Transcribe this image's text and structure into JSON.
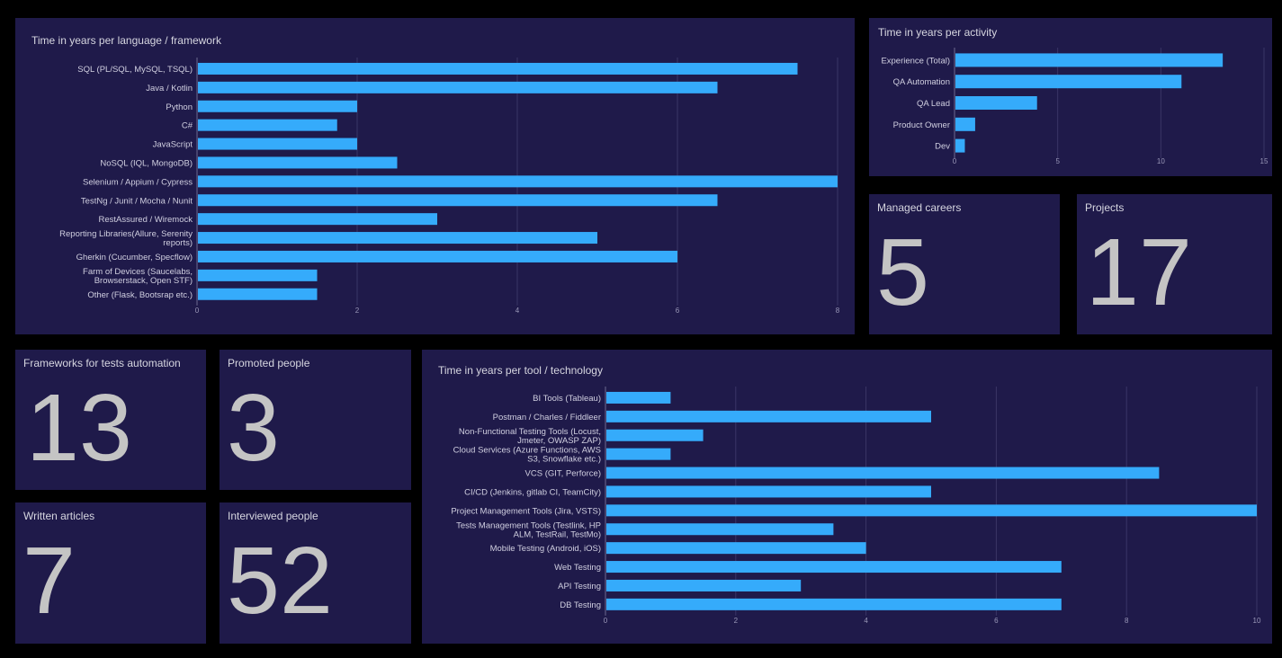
{
  "colors": {
    "background": "#000000",
    "panel": "#1f1a4a",
    "bar": "#35abfb",
    "gridline": "#3a3566",
    "text": "#d0cfe0",
    "big_number": "#c4c4c4"
  },
  "panels": {
    "languages": {
      "title": "Time in years per language / framework"
    },
    "activities": {
      "title": "Time in years per activity"
    },
    "tools": {
      "title": "Time in years per tool / technology"
    }
  },
  "stats": {
    "managed_careers": {
      "label": "Managed careers",
      "value": "5"
    },
    "projects": {
      "label": "Projects",
      "value": "17"
    },
    "frameworks": {
      "label": "Frameworks for tests automation",
      "value": "13"
    },
    "promoted": {
      "label": "Promoted people",
      "value": "3"
    },
    "articles": {
      "label": "Written articles",
      "value": "7"
    },
    "interviewed": {
      "label": "Interviewed people",
      "value": "52"
    }
  },
  "chart_data": [
    {
      "id": "languages",
      "type": "bar",
      "orientation": "horizontal",
      "title": "Time in years per language / framework",
      "categories": [
        [
          "SQL (PL/SQL, MySQL, TSQL)"
        ],
        [
          "Java / Kotlin"
        ],
        [
          "Python"
        ],
        [
          "C#"
        ],
        [
          "JavaScript"
        ],
        [
          "NoSQL (IQL, MongoDB)"
        ],
        [
          "Selenium / Appium / Cypress"
        ],
        [
          "TestNg / Junit / Mocha / Nunit"
        ],
        [
          "RestAssured / Wiremock"
        ],
        [
          "Reporting Libraries(Allure, Serenity",
          "reports)"
        ],
        [
          "Gherkin (Cucumber, Specflow)"
        ],
        [
          "Farm of Devices (Saucelabs,",
          "Browserstack, Open STF)"
        ],
        [
          "Other (Flask, Bootsrap etc.)"
        ]
      ],
      "values": [
        7.5,
        6.5,
        2,
        1.75,
        2,
        2.5,
        8,
        6.5,
        3,
        5,
        6,
        1.5,
        1.5
      ],
      "xlim": [
        0,
        8
      ],
      "xticks": [
        0,
        2,
        4,
        6,
        8
      ],
      "grid": true
    },
    {
      "id": "activities",
      "type": "bar",
      "orientation": "horizontal",
      "title": "Time in years per activity",
      "categories": [
        [
          "Experience (Total)"
        ],
        [
          "QA Automation"
        ],
        [
          "QA Lead"
        ],
        [
          "Product Owner"
        ],
        [
          "Dev"
        ]
      ],
      "values": [
        13,
        11,
        4,
        1,
        0.5
      ],
      "xlim": [
        0,
        15
      ],
      "xticks": [
        0,
        5,
        10,
        15
      ],
      "grid": true
    },
    {
      "id": "tools",
      "type": "bar",
      "orientation": "horizontal",
      "title": "Time in years per tool / technology",
      "categories": [
        [
          "BI Tools (Tableau)"
        ],
        [
          "Postman / Charles / Fiddleer"
        ],
        [
          "Non-Functional Testing Tools (Locust,",
          "Jmeter, OWASP ZAP)"
        ],
        [
          "Cloud Services (Azure Functions, AWS",
          "S3, Snowflake etc.)"
        ],
        [
          "VCS (GIT, Perforce)"
        ],
        [
          "CI/CD (Jenkins, gitlab CI, TeamCity)"
        ],
        [
          "Project Management Tools (Jira, VSTS)"
        ],
        [
          "Tests Management Tools (Testlink, HP",
          "ALM, TestRail, TestMo)"
        ],
        [
          "Mobile Testing (Android, iOS)"
        ],
        [
          "Web Testing"
        ],
        [
          "API Testing"
        ],
        [
          "DB Testing"
        ]
      ],
      "values": [
        1,
        5,
        1.5,
        1,
        8.5,
        5,
        10,
        3.5,
        4,
        7,
        3,
        7
      ],
      "xlim": [
        0,
        10
      ],
      "xticks": [
        0,
        2,
        4,
        6,
        8,
        10
      ],
      "grid": true
    }
  ]
}
